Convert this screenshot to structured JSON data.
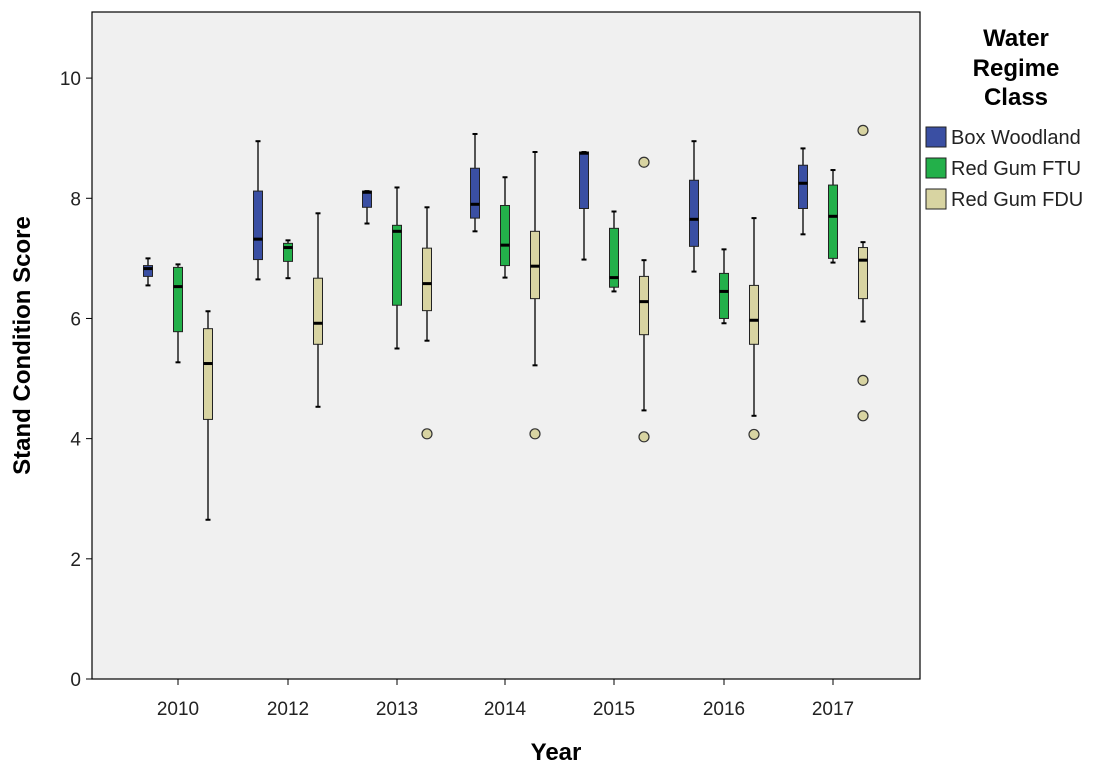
{
  "chart_data": {
    "type": "box",
    "title": "",
    "xlabel": "Year",
    "ylabel": "Stand Condition Score",
    "categories": [
      "2010",
      "2012",
      "2013",
      "2014",
      "2015",
      "2016",
      "2017"
    ],
    "ylim": [
      0,
      11.1
    ],
    "yticks": [
      0,
      2,
      4,
      6,
      8,
      10
    ],
    "grid": false,
    "plot_background": "#f0f0f0",
    "legend": {
      "title": [
        "Water",
        "Regime",
        "Class"
      ],
      "placement": "right"
    },
    "series": [
      {
        "name": "Box Woodland",
        "color": "#3a4fa3",
        "boxes": [
          {
            "min": 6.55,
            "q1": 6.7,
            "median": 6.83,
            "q3": 6.88,
            "max": 7.0,
            "outliers": []
          },
          {
            "min": 6.65,
            "q1": 6.98,
            "median": 7.32,
            "q3": 8.12,
            "max": 8.95,
            "outliers": []
          },
          {
            "min": 7.58,
            "q1": 7.85,
            "median": 8.1,
            "q3": 8.12,
            "max": 8.12,
            "outliers": []
          },
          {
            "min": 7.45,
            "q1": 7.67,
            "median": 7.9,
            "q3": 8.5,
            "max": 9.07,
            "outliers": []
          },
          {
            "min": 6.98,
            "q1": 7.83,
            "median": 8.75,
            "q3": 8.77,
            "max": 8.77,
            "outliers": []
          },
          {
            "min": 6.78,
            "q1": 7.2,
            "median": 7.65,
            "q3": 8.3,
            "max": 8.95,
            "outliers": []
          },
          {
            "min": 7.4,
            "q1": 7.83,
            "median": 8.25,
            "q3": 8.55,
            "max": 8.83,
            "outliers": []
          }
        ]
      },
      {
        "name": "Red Gum FTU",
        "color": "#23b04a",
        "boxes": [
          {
            "min": 5.27,
            "q1": 5.78,
            "median": 6.53,
            "q3": 6.85,
            "max": 6.9,
            "outliers": []
          },
          {
            "min": 6.67,
            "q1": 6.95,
            "median": 7.18,
            "q3": 7.25,
            "max": 7.3,
            "outliers": []
          },
          {
            "min": 5.5,
            "q1": 6.22,
            "median": 7.45,
            "q3": 7.55,
            "max": 8.18,
            "outliers": []
          },
          {
            "min": 6.68,
            "q1": 6.88,
            "median": 7.22,
            "q3": 7.88,
            "max": 8.35,
            "outliers": []
          },
          {
            "min": 6.45,
            "q1": 6.52,
            "median": 6.68,
            "q3": 7.5,
            "max": 7.78,
            "outliers": []
          },
          {
            "min": 5.92,
            "q1": 6.0,
            "median": 6.45,
            "q3": 6.75,
            "max": 7.15,
            "outliers": []
          },
          {
            "min": 6.93,
            "q1": 7.0,
            "median": 7.7,
            "q3": 8.22,
            "max": 8.47,
            "outliers": []
          }
        ]
      },
      {
        "name": "Red Gum FDU",
        "color": "#d8d4a2",
        "boxes": [
          {
            "min": 2.65,
            "q1": 4.32,
            "median": 5.25,
            "q3": 5.83,
            "max": 6.12,
            "outliers": []
          },
          {
            "min": 4.53,
            "q1": 5.57,
            "median": 5.92,
            "q3": 6.67,
            "max": 7.75,
            "outliers": []
          },
          {
            "min": 5.63,
            "q1": 6.13,
            "median": 6.58,
            "q3": 7.17,
            "max": 7.85,
            "outliers": [
              4.08
            ]
          },
          {
            "min": 5.22,
            "q1": 6.33,
            "median": 6.87,
            "q3": 7.45,
            "max": 8.77,
            "outliers": [
              4.08
            ]
          },
          {
            "min": 4.47,
            "q1": 5.73,
            "median": 6.28,
            "q3": 6.7,
            "max": 6.97,
            "outliers": [
              4.03,
              8.6
            ]
          },
          {
            "min": 4.38,
            "q1": 5.57,
            "median": 5.97,
            "q3": 6.55,
            "max": 7.67,
            "outliers": [
              4.07
            ]
          },
          {
            "min": 5.95,
            "q1": 6.33,
            "median": 6.97,
            "q3": 7.18,
            "max": 7.27,
            "outliers": [
              4.38,
              4.97,
              9.13
            ]
          }
        ]
      }
    ]
  }
}
